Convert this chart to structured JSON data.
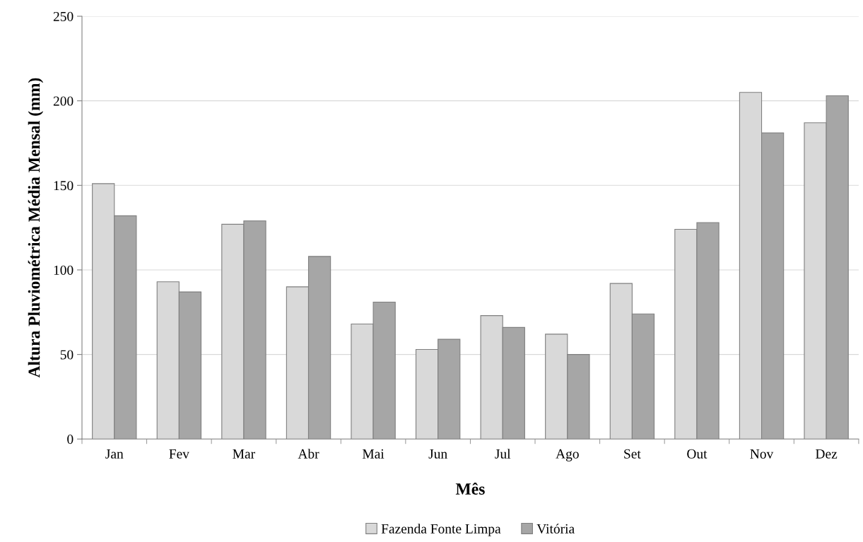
{
  "chart_data": {
    "type": "bar",
    "xlabel": "Mês",
    "ylabel": "Altura Pluviométrica Média Mensal (mm)",
    "categories": [
      "Jan",
      "Fev",
      "Mar",
      "Abr",
      "Mai",
      "Jun",
      "Jul",
      "Ago",
      "Set",
      "Out",
      "Nov",
      "Dez"
    ],
    "series": [
      {
        "name": "Fazenda Fonte Limpa",
        "color": "#d9d9d9",
        "values": [
          151,
          93,
          127,
          90,
          68,
          53,
          73,
          62,
          92,
          124,
          205,
          187
        ]
      },
      {
        "name": "Vitória",
        "color": "#a6a6a6",
        "values": [
          132,
          87,
          129,
          108,
          81,
          59,
          66,
          50,
          74,
          128,
          181,
          203
        ]
      }
    ],
    "ylim": [
      0,
      250
    ],
    "yticks": [
      0,
      50,
      100,
      150,
      200,
      250
    ],
    "grid": "y",
    "legend": "bottom"
  }
}
